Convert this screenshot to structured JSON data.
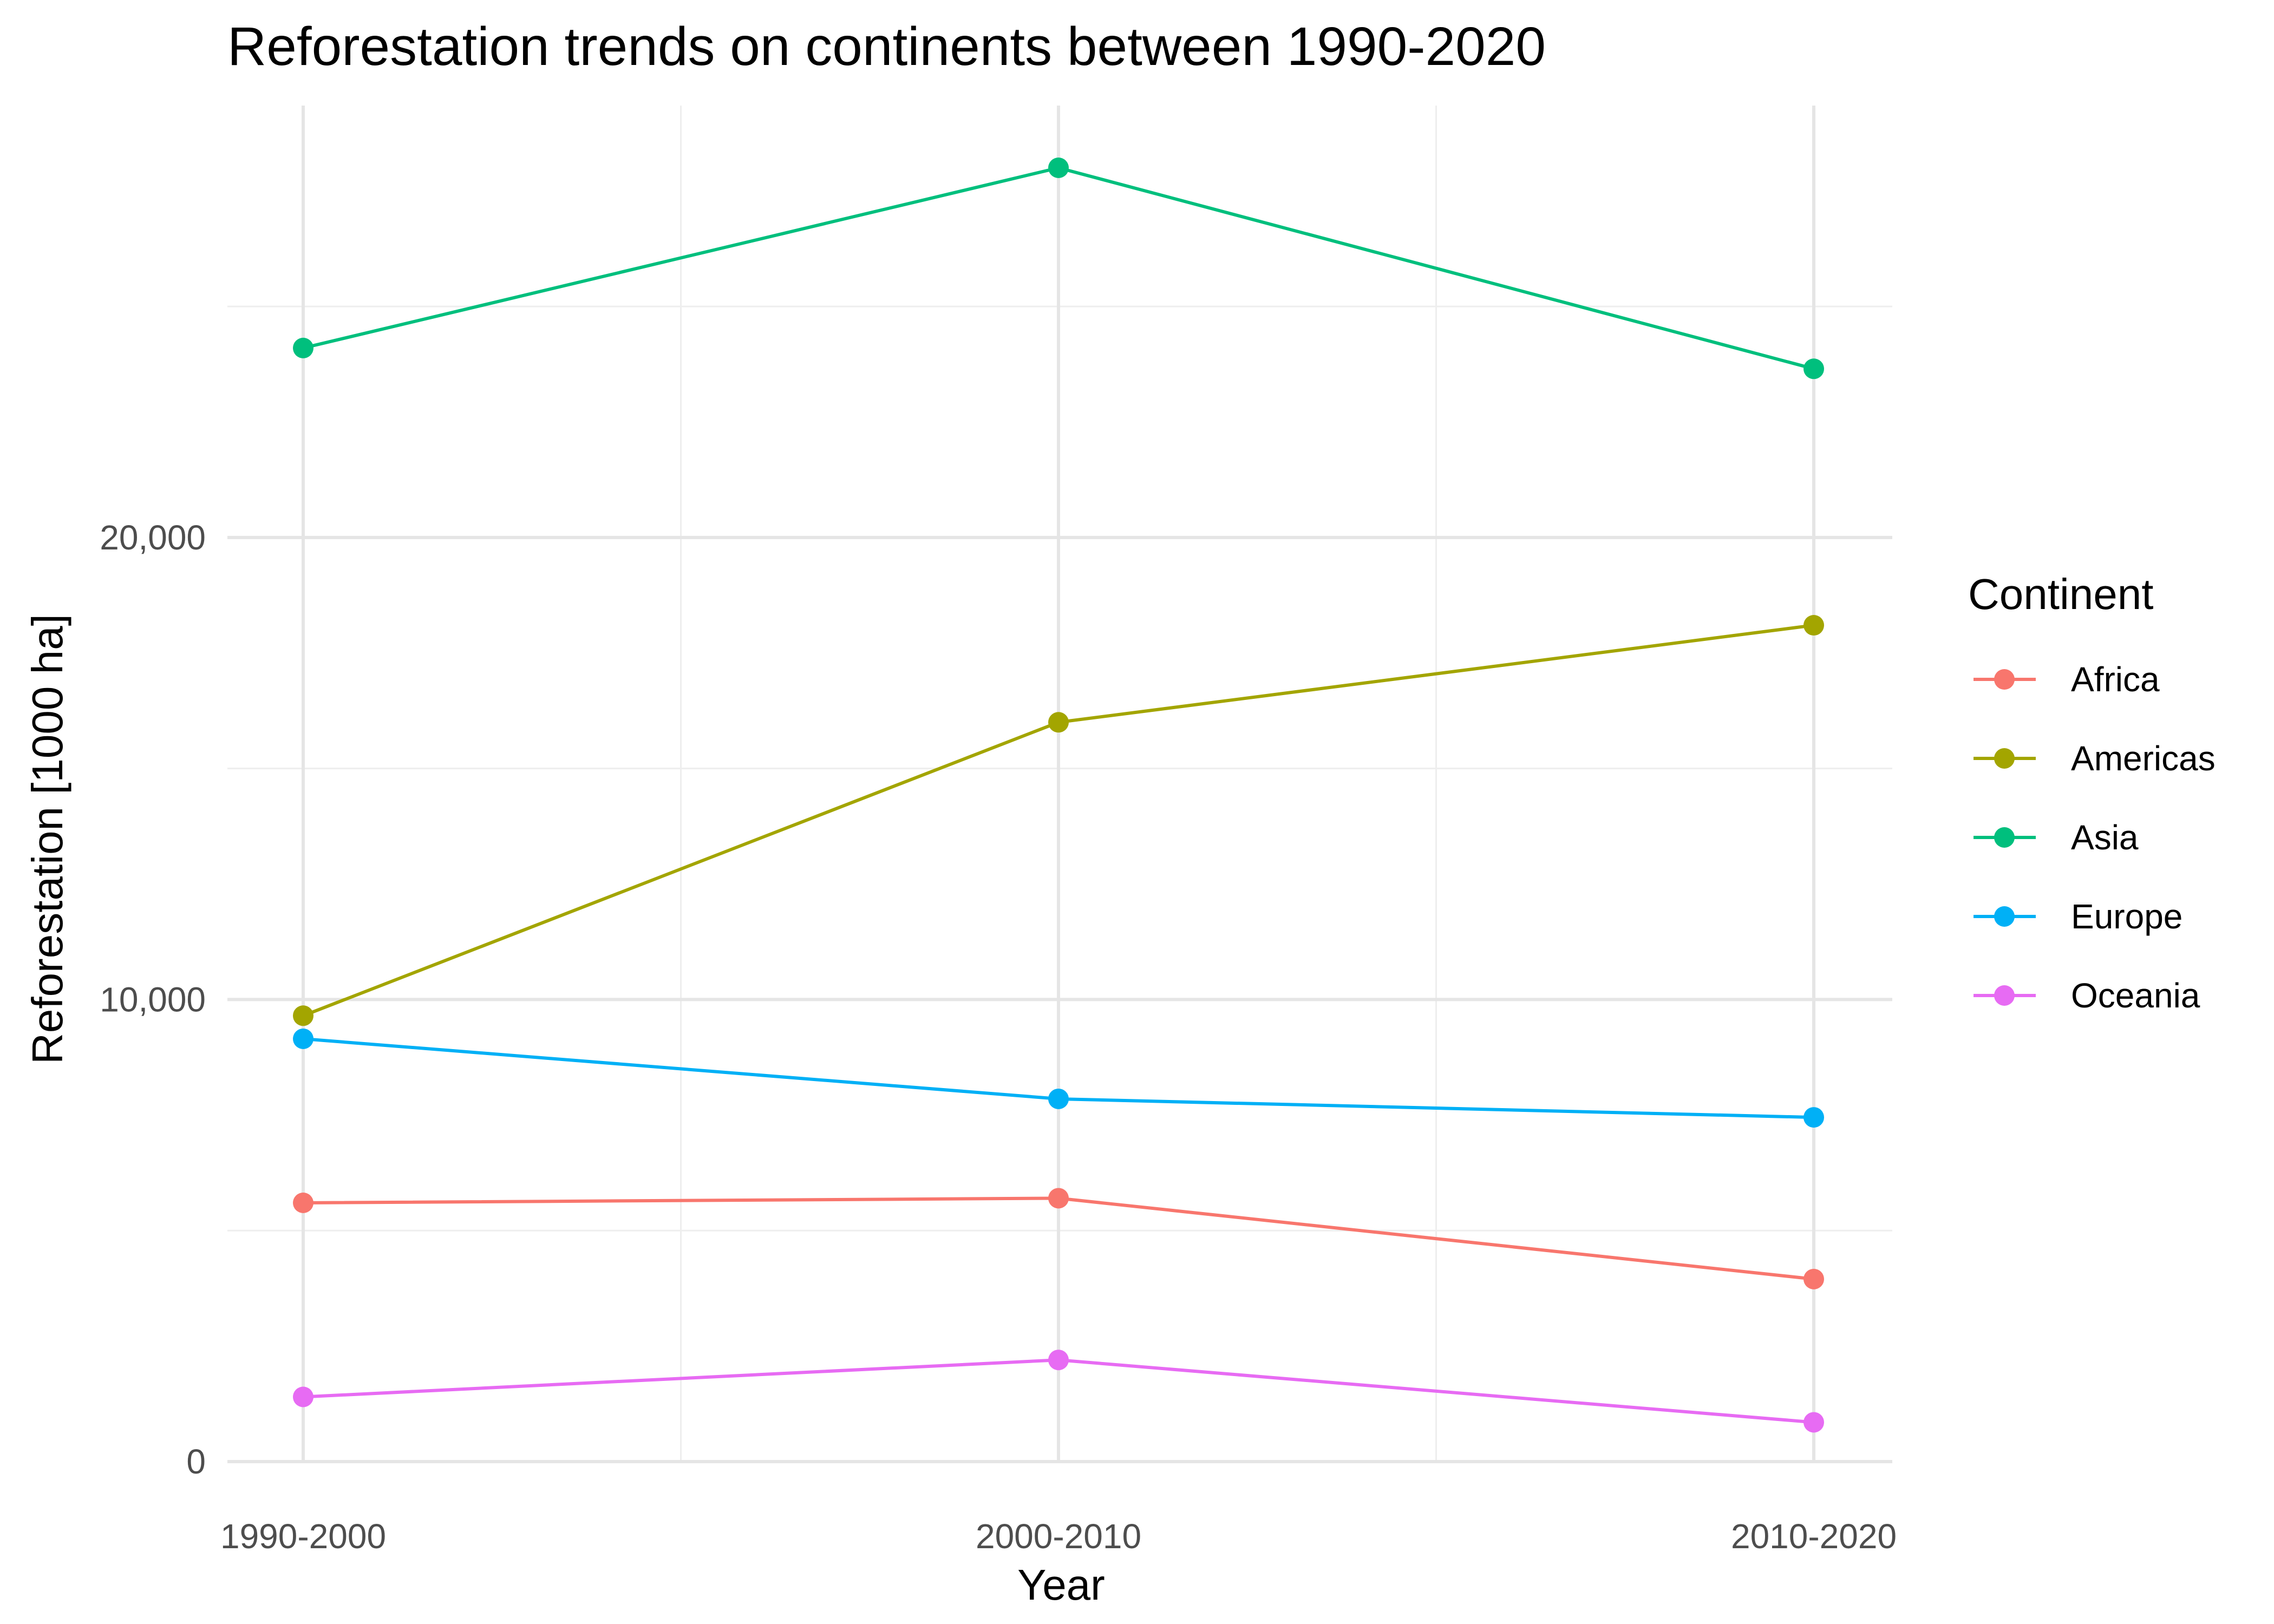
{
  "chart_data": {
    "type": "line",
    "title": "Reforestation trends on continents between 1990-2020",
    "xlabel": "Year",
    "ylabel": "Reforestation [1000 ha]",
    "categories": [
      "1990-2000",
      "2000-2010",
      "2010-2020"
    ],
    "ylim": [
      0,
      28000
    ],
    "yticks": [
      0,
      10000,
      20000
    ],
    "ytick_labels": [
      "0",
      "10,000",
      "20,000"
    ],
    "grid": true,
    "legend": {
      "title": "Continent",
      "position": "right"
    },
    "series": [
      {
        "name": "Africa",
        "color": "#F8766D",
        "values": [
          5600,
          5700,
          3950
        ]
      },
      {
        "name": "Americas",
        "color": "#A3A500",
        "values": [
          9650,
          16000,
          18100
        ]
      },
      {
        "name": "Asia",
        "color": "#00BF7D",
        "values": [
          24100,
          28000,
          23650
        ]
      },
      {
        "name": "Europe",
        "color": "#00B0F6",
        "values": [
          9150,
          7850,
          7450
        ]
      },
      {
        "name": "Oceania",
        "color": "#E76BF3",
        "values": [
          1400,
          2200,
          850
        ]
      }
    ]
  }
}
